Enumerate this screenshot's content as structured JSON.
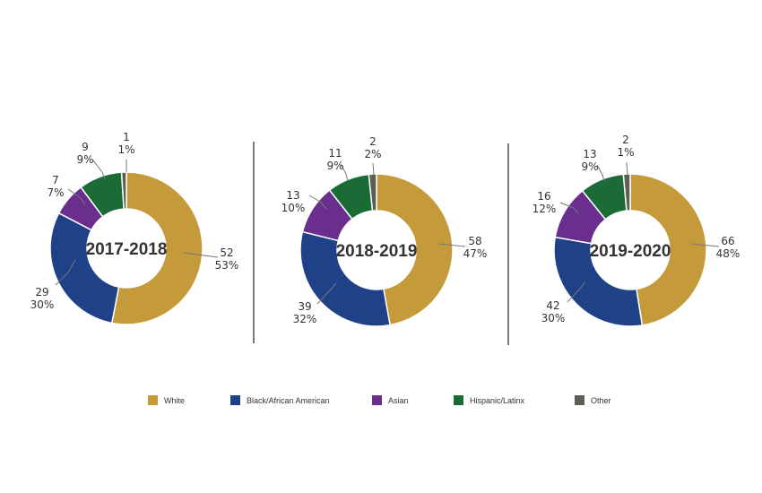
{
  "chart_data": [
    {
      "type": "donut",
      "center_label": "2017-2018",
      "categories": [
        "White",
        "Black/African American",
        "Asian",
        "Hispanic/Latinx",
        "Other"
      ],
      "values": [
        52,
        29,
        7,
        9,
        1
      ],
      "percent_labels": [
        "53%",
        "30%",
        "7%",
        "9%",
        "1%"
      ]
    },
    {
      "type": "donut",
      "center_label": "2018-2019",
      "categories": [
        "White",
        "Black/African American",
        "Asian",
        "Hispanic/Latinx",
        "Other"
      ],
      "values": [
        58,
        39,
        13,
        11,
        2
      ],
      "percent_labels": [
        "47%",
        "32%",
        "10%",
        "9%",
        "2%"
      ]
    },
    {
      "type": "donut",
      "center_label": "2019-2020",
      "categories": [
        "White",
        "Black/African American",
        "Asian",
        "Hispanic/Latinx",
        "Other"
      ],
      "values": [
        66,
        42,
        16,
        13,
        2
      ],
      "percent_labels": [
        "48%",
        "30%",
        "12%",
        "9%",
        "1%"
      ]
    }
  ],
  "legend": [
    {
      "label": "White",
      "color": "#C49A3A"
    },
    {
      "label": "Black/African American",
      "color": "#1F4187"
    },
    {
      "label": "Asian",
      "color": "#6A2E8C"
    },
    {
      "label": "Hispanic/Latinx",
      "color": "#1A6B36"
    },
    {
      "label": "Other",
      "color": "#5E5E54"
    }
  ]
}
